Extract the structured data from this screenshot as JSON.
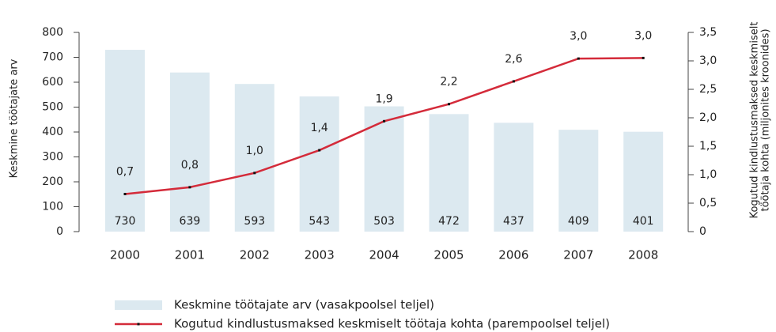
{
  "chart_data": {
    "type": "bar-line",
    "categories": [
      "2000",
      "2001",
      "2002",
      "2003",
      "2004",
      "2005",
      "2006",
      "2007",
      "2008"
    ],
    "series": [
      {
        "name": "Keskmine töötajate arv (vasakpoolsel teljel)",
        "type": "bar",
        "color": "#dce9f0",
        "values": [
          730,
          639,
          593,
          543,
          503,
          472,
          437,
          409,
          401
        ]
      },
      {
        "name": "Kogutud kindlustusmaksed keskmiselt töötaja kohta (parempoolsel teljel)",
        "type": "line",
        "axis": "y2",
        "color": "#d42b3a",
        "values": [
          0.66,
          0.78,
          1.03,
          1.43,
          1.94,
          2.24,
          2.64,
          3.04,
          3.05
        ],
        "value_labels": [
          "0,7",
          "0,8",
          "1,0",
          "1,4",
          "1,9",
          "2,2",
          "2,6",
          "3,0",
          "3,0"
        ]
      }
    ],
    "ylabel": "Keskmine töötajate arv",
    "y2label": [
      "Kogutud kindlustusmaksed keskmiselt",
      "töötaja kohta (miljonites kroonides)"
    ],
    "ylim": [
      0,
      800
    ],
    "yticks": [
      0,
      100,
      200,
      300,
      400,
      500,
      600,
      700,
      800
    ],
    "y2lim": [
      0,
      3.5
    ],
    "y2ticks": [
      0,
      {
        "value": 0.5,
        "label": "0,5"
      },
      {
        "value": 1,
        "label": "1,0"
      },
      {
        "value": 1.5,
        "label": "1,5"
      },
      {
        "value": 2,
        "label": "2,0"
      },
      {
        "value": 2.5,
        "label": "2,5"
      },
      {
        "value": 3,
        "label": "3,0"
      },
      {
        "value": 3.5,
        "label": "3,5"
      }
    ],
    "legend": "bottom"
  }
}
